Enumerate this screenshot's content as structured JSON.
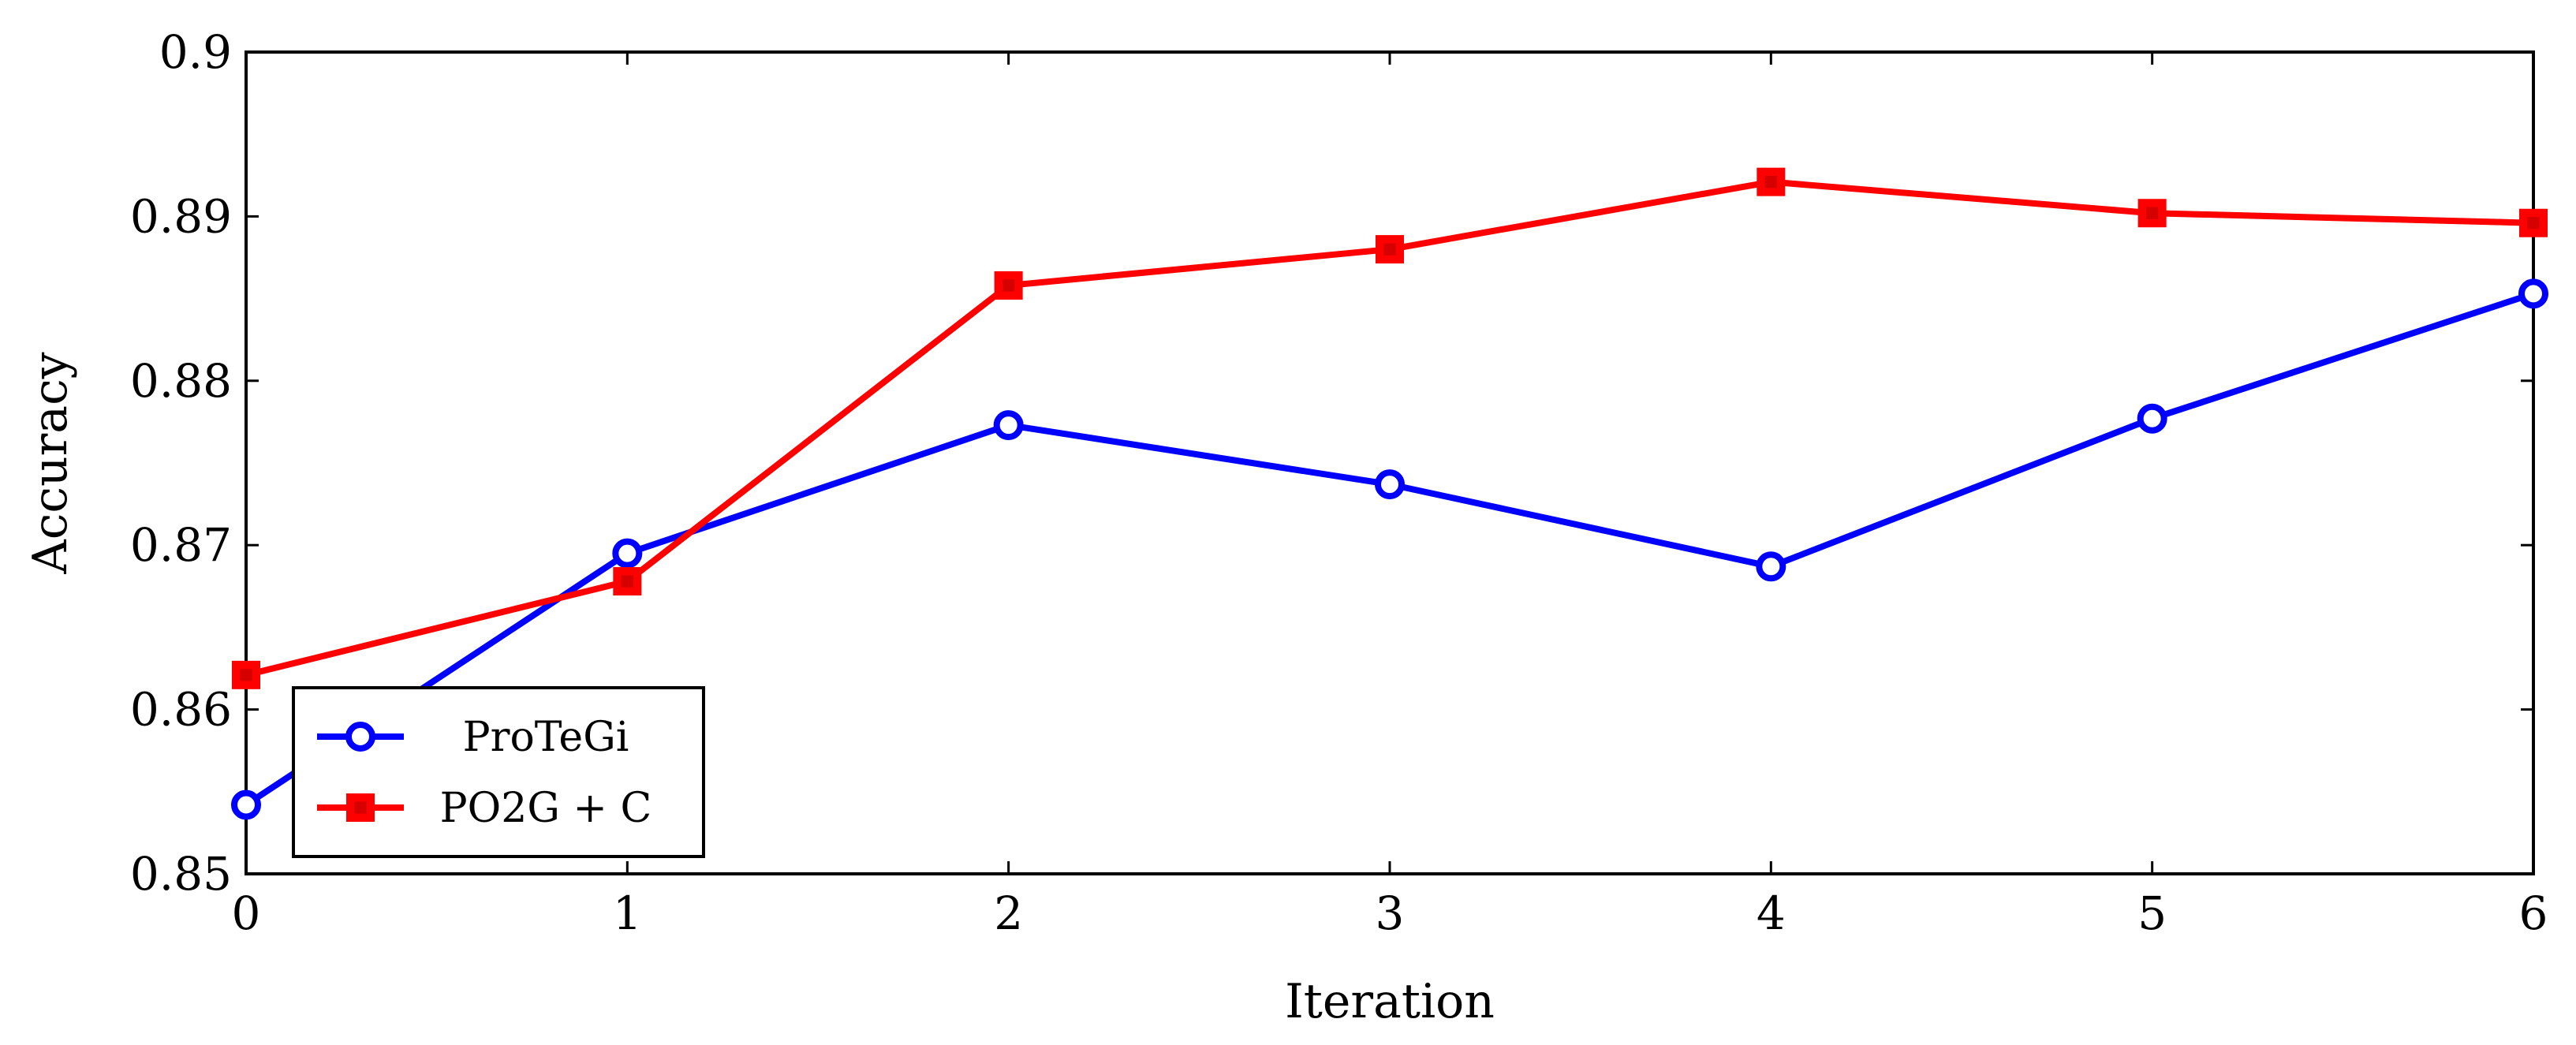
{
  "chart_data": {
    "type": "line",
    "title": "",
    "xlabel": "Iteration",
    "ylabel": "Accuracy",
    "x": [
      0,
      1,
      2,
      3,
      4,
      5,
      6
    ],
    "xlim": [
      0,
      6
    ],
    "ylim": [
      0.85,
      0.9
    ],
    "x_ticks": [
      "0",
      "1",
      "2",
      "3",
      "4",
      "5",
      "6"
    ],
    "y_ticks": [
      "0.85",
      "0.86",
      "0.87",
      "0.88",
      "0.89",
      "0.9"
    ],
    "y_tick_values": [
      0.85,
      0.86,
      0.87,
      0.88,
      0.89,
      0.9
    ],
    "grid": false,
    "legend_position": "bottom-left",
    "series": [
      {
        "name": "ProTeGi",
        "color": "#0000ff",
        "marker": "circle",
        "values": [
          0.8542,
          0.8695,
          0.8773,
          0.8737,
          0.8687,
          0.8777,
          0.8853
        ]
      },
      {
        "name": "PO2G + C",
        "color": "#ff0000",
        "marker": "square",
        "values": [
          0.8621,
          0.8678,
          0.8858,
          0.888,
          0.8921,
          0.8902,
          0.8896
        ]
      }
    ]
  }
}
